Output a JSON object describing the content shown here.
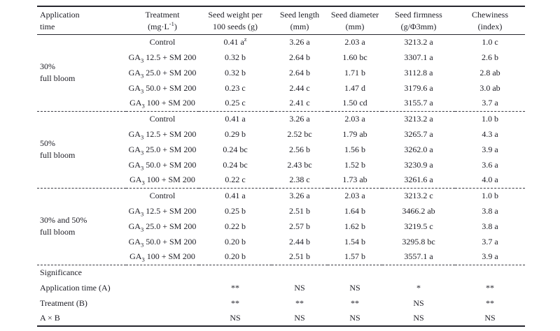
{
  "colors": {
    "background": "#ffffff",
    "text": "#1c1c24",
    "rule_line": "#26262e",
    "dash_line": "#3a3a42"
  },
  "table": {
    "columns": [
      {
        "line1": "Application",
        "line2": "time"
      },
      {
        "line1": "Treatment",
        "line2_pre": "(mg·L",
        "line2_sup": "-1",
        "line2_post": ")"
      },
      {
        "line1": "Seed weight per",
        "line2": "100 seeds (g)"
      },
      {
        "line1": "Seed length",
        "line2": "(mm)"
      },
      {
        "line1": "Seed diameter",
        "line2": "(mm)"
      },
      {
        "line1": "Seed firmness",
        "line2": "(g/Φ3mm)"
      },
      {
        "line1": "Chewiness",
        "line2": "(index)"
      }
    ],
    "groups": [
      {
        "label1": "30%",
        "label2": "full bloom",
        "rows": [
          {
            "treatment": {
              "base": "Control",
              "sub": "",
              "suffix": ""
            },
            "values": [
              "0.41 a",
              "3.26 a",
              "2.03 a",
              "3213.2 a",
              "1.0 c"
            ],
            "sup0": "z"
          },
          {
            "treatment": {
              "base": "GA",
              "sub": "3",
              "suffix": " 12.5 + SM 200"
            },
            "values": [
              "0.32 b",
              "2.64 b",
              "1.60 bc",
              "3307.1 a",
              "2.6 b"
            ]
          },
          {
            "treatment": {
              "base": "GA",
              "sub": "3",
              "suffix": " 25.0 + SM 200"
            },
            "values": [
              "0.32 b",
              "2.64 b",
              "1.71 b",
              "3112.8 a",
              "2.8 ab"
            ]
          },
          {
            "treatment": {
              "base": "GA",
              "sub": "3",
              "suffix": " 50.0 + SM 200"
            },
            "values": [
              "0.23 c",
              "2.44 c",
              "1.47 d",
              "3179.6 a",
              "3.0 ab"
            ]
          },
          {
            "treatment": {
              "base": "GA",
              "sub": "3",
              "suffix": " 100 + SM 200"
            },
            "values": [
              "0.25 c",
              "2.41 c",
              "1.50 cd",
              "3155.7 a",
              "3.7 a"
            ]
          }
        ]
      },
      {
        "label1": "50%",
        "label2": "full bloom",
        "rows": [
          {
            "treatment": {
              "base": "Control",
              "sub": "",
              "suffix": ""
            },
            "values": [
              "0.41 a",
              "3.26 a",
              "2.03 a",
              "3213.2 a",
              "1.0 b"
            ]
          },
          {
            "treatment": {
              "base": "GA",
              "sub": "3",
              "suffix": " 12.5 + SM 200"
            },
            "values": [
              "0.29 b",
              "2.52 bc",
              "1.79 ab",
              "3265.7 a",
              "4.3 a"
            ]
          },
          {
            "treatment": {
              "base": "GA",
              "sub": "3",
              "suffix": " 25.0 + SM 200"
            },
            "values": [
              "0.24 bc",
              "2.56 b",
              "1.56 b",
              "3262.0 a",
              "3.9 a"
            ]
          },
          {
            "treatment": {
              "base": "GA",
              "sub": "3",
              "suffix": " 50.0 + SM 200"
            },
            "values": [
              "0.24 bc",
              "2.43 bc",
              "1.52 b",
              "3230.9 a",
              "3.6 a"
            ]
          },
          {
            "treatment": {
              "base": "GA",
              "sub": "3",
              "suffix": " 100 + SM 200"
            },
            "values": [
              "0.22 c",
              "2.38 c",
              "1.73 ab",
              "3261.6 a",
              "4.0 a"
            ]
          }
        ]
      },
      {
        "label1": "30% and 50%",
        "label2": "full bloom",
        "rows": [
          {
            "treatment": {
              "base": "Control",
              "sub": "",
              "suffix": ""
            },
            "values": [
              "0.41 a",
              "3.26 a",
              "2.03 a",
              "3213.2 c",
              "1.0 b"
            ]
          },
          {
            "treatment": {
              "base": "GA",
              "sub": "3",
              "suffix": " 12.5 + SM 200"
            },
            "values": [
              "0.25 b",
              "2.51 b",
              "1.64 b",
              "3466.2 ab",
              "3.8 a"
            ]
          },
          {
            "treatment": {
              "base": "GA",
              "sub": "3",
              "suffix": " 25.0 + SM 200"
            },
            "values": [
              "0.22 b",
              "2.57 b",
              "1.62 b",
              "3219.5 c",
              "3.8 a"
            ]
          },
          {
            "treatment": {
              "base": "GA",
              "sub": "3",
              "suffix": " 50.0 + SM 200"
            },
            "values": [
              "0.20 b",
              "2.44 b",
              "1.54 b",
              "3295.8 bc",
              "3.7 a"
            ]
          },
          {
            "treatment": {
              "base": "GA",
              "sub": "3",
              "suffix": " 100 + SM 200"
            },
            "values": [
              "0.20 b",
              "2.51 b",
              "1.57 b",
              "3557.1 a",
              "3.9 a"
            ]
          }
        ]
      }
    ],
    "significance": {
      "title": "Significance",
      "rows": [
        {
          "label": "Application time (A)",
          "values": [
            "**",
            "NS",
            "NS",
            "*",
            "**"
          ]
        },
        {
          "label": "Treatment (B)",
          "values": [
            "**",
            "**",
            "**",
            "NS",
            "**"
          ]
        },
        {
          "label": "A × B",
          "values": [
            "NS",
            "NS",
            "NS",
            "NS",
            "NS"
          ]
        }
      ]
    }
  }
}
